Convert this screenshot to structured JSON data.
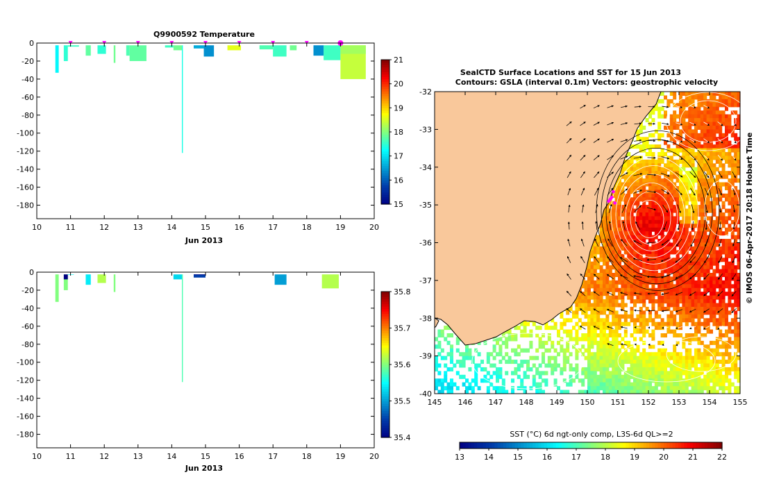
{
  "chart_data": [
    {
      "type": "bar",
      "id": "temperature-profile",
      "title": "Q9900592  Temperature",
      "xlabel": "Jun 2013",
      "ylabel": "",
      "xlim": [
        10,
        20
      ],
      "ylim": [
        -195,
        0
      ],
      "xticks": [
        10,
        11,
        12,
        13,
        14,
        15,
        16,
        17,
        18,
        19,
        20
      ],
      "yticks": [
        0,
        -20,
        -40,
        -60,
        -80,
        -100,
        -120,
        -140,
        -160,
        -180
      ],
      "colorbar": {
        "min": 15,
        "max": 21,
        "ticks": [
          15,
          16,
          17,
          18,
          19,
          20,
          21
        ]
      },
      "profiles": [
        {
          "x0": 10.55,
          "x1": 10.65,
          "depth": 33,
          "value": 17.2
        },
        {
          "x0": 10.8,
          "x1": 10.92,
          "depth": 20,
          "value": 17.5
        },
        {
          "x0": 10.92,
          "x1": 11.25,
          "depth": 4,
          "value": 17.6
        },
        {
          "x0": 11.45,
          "x1": 11.6,
          "depth": 14,
          "value": 17.8
        },
        {
          "x0": 11.8,
          "x1": 12.05,
          "depth": 12,
          "value": 17.5
        },
        {
          "x0": 12.28,
          "x1": 12.33,
          "depth": 22,
          "value": 17.9
        },
        {
          "x0": 12.65,
          "x1": 12.75,
          "depth": 14,
          "value": 17.7
        },
        {
          "x0": 12.75,
          "x1": 13.25,
          "depth": 20,
          "value": 17.8
        },
        {
          "x0": 13.8,
          "x1": 14.05,
          "depth": 5,
          "value": 17.6
        },
        {
          "x0": 14.05,
          "x1": 14.3,
          "depth": 8,
          "value": 17.9
        },
        {
          "x0": 14.3,
          "x1": 14.33,
          "depth": 122,
          "value": 17.4
        },
        {
          "x0": 14.65,
          "x1": 14.95,
          "depth": 6,
          "value": 16.6
        },
        {
          "x0": 14.95,
          "x1": 15.25,
          "depth": 15,
          "value": 16.4
        },
        {
          "x0": 15.65,
          "x1": 16.05,
          "depth": 8,
          "value": 18.6
        },
        {
          "x0": 16.6,
          "x1": 17.0,
          "depth": 7,
          "value": 17.7
        },
        {
          "x0": 17.0,
          "x1": 17.4,
          "depth": 15,
          "value": 17.6
        },
        {
          "x0": 17.5,
          "x1": 17.7,
          "depth": 8,
          "value": 17.9
        },
        {
          "x0": 18.2,
          "x1": 18.5,
          "depth": 14,
          "value": 16.4
        },
        {
          "x0": 18.5,
          "x1": 19.0,
          "depth": 19,
          "value": 17.6
        },
        {
          "x0": 19.0,
          "x1": 19.75,
          "depth": 12,
          "value": 18.2
        },
        {
          "x0": 19.0,
          "x1": 19.75,
          "depth": 40,
          "value": 18.4
        }
      ],
      "markers": [
        11,
        12,
        13,
        14,
        15,
        16,
        17,
        18,
        19
      ]
    },
    {
      "type": "bar",
      "id": "salinity-profile",
      "title": "",
      "xlabel": "Jun 2013",
      "ylabel": "",
      "xlim": [
        10,
        20
      ],
      "ylim": [
        -195,
        0
      ],
      "xticks": [
        10,
        11,
        12,
        13,
        14,
        15,
        16,
        17,
        18,
        19,
        20
      ],
      "yticks": [
        0,
        -20,
        -40,
        -60,
        -80,
        -100,
        -120,
        -140,
        -160,
        -180
      ],
      "colorbar": {
        "min": 35.4,
        "max": 35.8,
        "ticks": [
          35.4,
          35.5,
          35.6,
          35.7,
          35.8
        ]
      },
      "profiles": [
        {
          "x0": 10.55,
          "x1": 10.65,
          "depth": 33,
          "value": 35.6
        },
        {
          "x0": 10.8,
          "x1": 10.92,
          "depth": 8,
          "value": 35.38
        },
        {
          "x0": 10.8,
          "x1": 10.92,
          "depth": 20,
          "value": 35.6
        },
        {
          "x0": 10.92,
          "x1": 11.1,
          "depth": 3,
          "value": 35.55
        },
        {
          "x0": 11.45,
          "x1": 11.6,
          "depth": 14,
          "value": 35.54
        },
        {
          "x0": 11.8,
          "x1": 12.05,
          "depth": 12,
          "value": 35.62
        },
        {
          "x0": 12.28,
          "x1": 12.33,
          "depth": 22,
          "value": 35.6
        },
        {
          "x0": 14.05,
          "x1": 14.3,
          "depth": 8,
          "value": 35.53
        },
        {
          "x0": 14.3,
          "x1": 14.33,
          "depth": 122,
          "value": 35.58
        },
        {
          "x0": 14.65,
          "x1": 15.0,
          "depth": 3,
          "value": 35.38
        },
        {
          "x0": 14.65,
          "x1": 15.0,
          "depth": 6,
          "value": 35.45
        },
        {
          "x0": 17.05,
          "x1": 17.4,
          "depth": 14,
          "value": 35.5
        },
        {
          "x0": 18.45,
          "x1": 18.95,
          "depth": 18,
          "value": 35.62
        }
      ]
    },
    {
      "type": "heatmap",
      "id": "sst-map",
      "title": "SealCTD Surface Locations and SST for 15 Jun 2013",
      "subtitle": "Contours: GSLA (interval 0.1m) Vectors: geostrophic velocity",
      "xlim": [
        145,
        155
      ],
      "ylim": [
        -40,
        -32
      ],
      "xticks": [
        145,
        146,
        147,
        148,
        149,
        150,
        151,
        152,
        153,
        154,
        155
      ],
      "yticks": [
        -32,
        -33,
        -34,
        -35,
        -36,
        -37,
        -38,
        -39,
        -40
      ],
      "colorbar_label": "SST (°C) 6d ngt-only comp, L3S-6d QL>=2",
      "colorbar": {
        "min": 13,
        "max": 22,
        "ticks": [
          13,
          14,
          15,
          16,
          17,
          18,
          19,
          20,
          21,
          22
        ]
      },
      "seal_locations": [
        [
          150.7,
          -34.9
        ],
        [
          150.8,
          -34.8
        ],
        [
          150.85,
          -34.65
        ],
        [
          150.9,
          -34.95
        ],
        [
          150.75,
          -34.85
        ]
      ],
      "eddy_centre": [
        152.0,
        -35.4
      ],
      "side_text": "© IMOS 06-Apr-2017 20:18 Hobart Time"
    }
  ],
  "colors": {
    "land": "#f9c89b",
    "marker": "#ff00ff",
    "arrow": "#000000"
  }
}
